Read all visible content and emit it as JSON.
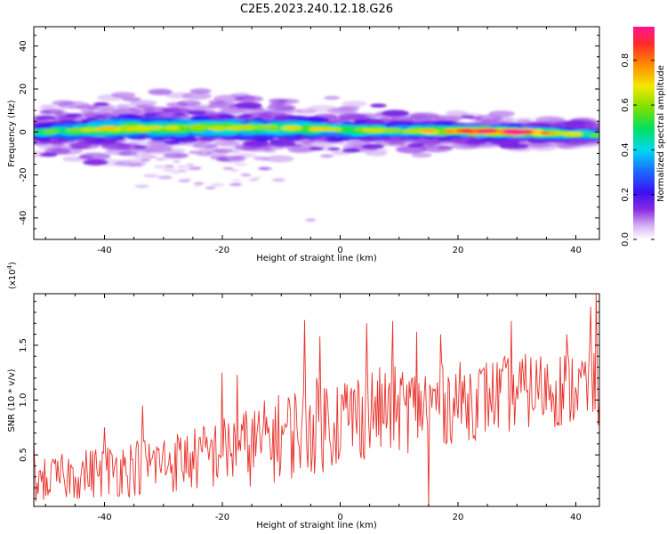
{
  "title": "C2E5.2023.240.12.18.G26",
  "chart_data": [
    {
      "type": "heatmap",
      "xlabel": "Height of straight line (km)",
      "ylabel": "Frequency (Hz)",
      "xlim": [
        -52,
        44
      ],
      "ylim": [
        -50,
        49
      ],
      "x_ticks": [
        -40,
        -20,
        0,
        20,
        40
      ],
      "y_ticks": [
        -40,
        -20,
        0,
        20,
        40
      ],
      "colorbar": {
        "label": "Normalized spectral amplitude",
        "range": [
          0,
          0.95
        ],
        "ticks": [
          0.0,
          0.2,
          0.4,
          0.6,
          0.8
        ]
      },
      "ridge": [
        {
          "x": -52,
          "y": 0.0,
          "width": 9,
          "amp": 0.45
        },
        {
          "x": -45,
          "y": 0.5,
          "width": 12,
          "amp": 0.55
        },
        {
          "x": -40,
          "y": 1.5,
          "width": 13,
          "amp": 0.65
        },
        {
          "x": -30,
          "y": 1.8,
          "width": 14,
          "amp": 0.6
        },
        {
          "x": -20,
          "y": 2.0,
          "width": 13,
          "amp": 0.6
        },
        {
          "x": -10,
          "y": 2.0,
          "width": 12,
          "amp": 0.6
        },
        {
          "x": 0,
          "y": 1.0,
          "width": 10,
          "amp": 0.6
        },
        {
          "x": 10,
          "y": 0.5,
          "width": 8,
          "amp": 0.6
        },
        {
          "x": 20,
          "y": 0.5,
          "width": 7,
          "amp": 0.75
        },
        {
          "x": 30,
          "y": 0.0,
          "width": 6,
          "amp": 0.9
        },
        {
          "x": 40,
          "y": -1.0,
          "width": 6,
          "amp": 0.6
        },
        {
          "x": 44,
          "y": -1.5,
          "width": 6,
          "amp": 0.55
        }
      ],
      "outliers": [
        {
          "x": -33,
          "y": -13
        },
        {
          "x": -29,
          "y": -16
        },
        {
          "x": -24,
          "y": -24
        },
        {
          "x": -19,
          "y": -17
        },
        {
          "x": -16,
          "y": -20
        },
        {
          "x": -13,
          "y": -17
        },
        {
          "x": -5,
          "y": -41
        },
        {
          "x": -22,
          "y": -26
        }
      ]
    },
    {
      "type": "line",
      "xlabel": "Height of straight line (km)",
      "ylabel": "SNR (10 * v/v)",
      "y_multiplier": "(x10",
      "y_multiplier_exp": "4",
      "y_multiplier_close": ")",
      "xlim": [
        -52,
        44
      ],
      "ylim": [
        0.03,
        1.97
      ],
      "x_ticks": [
        -40,
        -20,
        0,
        20,
        40
      ],
      "y_ticks": [
        0.5,
        1.0,
        1.5
      ],
      "series": [
        {
          "color": "#e8312a",
          "trend": [
            {
              "x": -52,
              "lo": 0.05,
              "hi": 0.45
            },
            {
              "x": -40,
              "lo": 0.1,
              "hi": 0.6
            },
            {
              "x": -25,
              "lo": 0.15,
              "hi": 0.75
            },
            {
              "x": -15,
              "lo": 0.2,
              "hi": 0.95
            },
            {
              "x": -5,
              "lo": 0.3,
              "hi": 1.2
            },
            {
              "x": 5,
              "lo": 0.45,
              "hi": 1.3
            },
            {
              "x": 20,
              "lo": 0.6,
              "hi": 1.35
            },
            {
              "x": 35,
              "lo": 0.75,
              "hi": 1.45
            },
            {
              "x": 44,
              "lo": 0.7,
              "hi": 1.5
            }
          ],
          "peaks": [
            {
              "x": -52,
              "y": 0.62
            },
            {
              "x": -40,
              "y": 0.75
            },
            {
              "x": -33.5,
              "y": 0.95
            },
            {
              "x": -20,
              "y": 1.25
            },
            {
              "x": -17.5,
              "y": 1.23
            },
            {
              "x": -6,
              "y": 1.73
            },
            {
              "x": -3.5,
              "y": 1.58
            },
            {
              "x": 4.5,
              "y": 1.7
            },
            {
              "x": 9,
              "y": 1.72
            },
            {
              "x": 13,
              "y": 1.62
            },
            {
              "x": 17,
              "y": 1.6
            },
            {
              "x": 29,
              "y": 1.72
            },
            {
              "x": 38.5,
              "y": 1.6
            },
            {
              "x": 42.5,
              "y": 1.85
            },
            {
              "x": 43.5,
              "y": 1.97
            },
            {
              "x": 15,
              "y": 0.03
            }
          ]
        }
      ]
    }
  ]
}
